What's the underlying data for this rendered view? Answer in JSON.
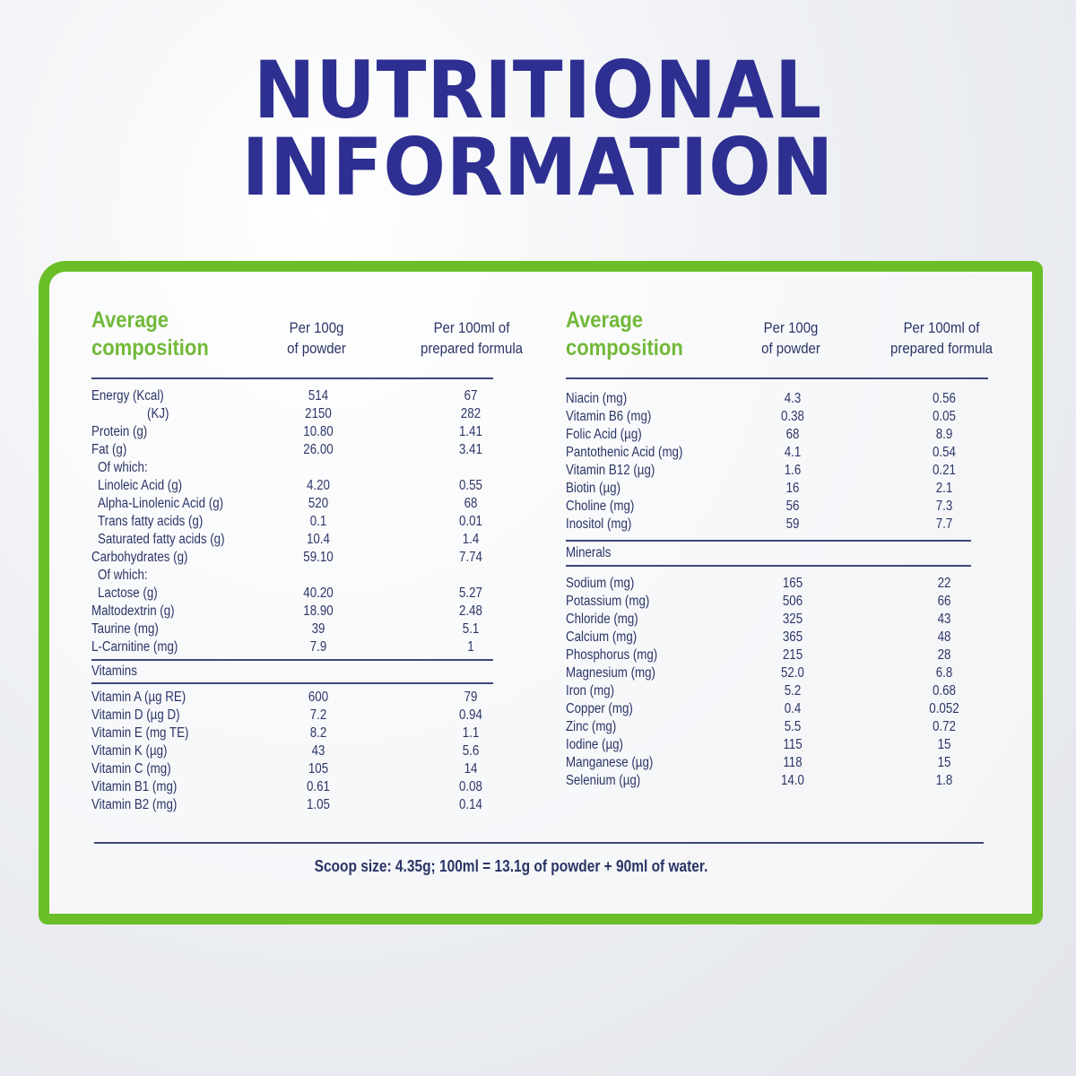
{
  "title": {
    "line1": "NUTRITIONAL",
    "line2": "INFORMATION"
  },
  "colors": {
    "title": "#2d2f91",
    "frame": "#6abf28",
    "heading": "#72b93a",
    "text": "#2a3566"
  },
  "headers": {
    "composition": [
      "Average",
      "composition"
    ],
    "per_100g": [
      "Per 100g",
      "of powder"
    ],
    "per_100ml": [
      "Per 100ml of",
      "prepared formula"
    ]
  },
  "left": {
    "nutrients": [
      {
        "name": "Energy (Kcal)",
        "per_100g": "514",
        "per_100ml": "67"
      },
      {
        "name": "(KJ)",
        "per_100g": "2150",
        "per_100ml": "282",
        "indent": 2
      },
      {
        "name": "Protein (g)",
        "per_100g": "10.80",
        "per_100ml": "1.41"
      },
      {
        "name": "Fat (g)",
        "per_100g": "26.00",
        "per_100ml": "3.41"
      },
      {
        "name": "Of which:",
        "per_100g": "",
        "per_100ml": "",
        "indent": 1
      },
      {
        "name": "Linoleic Acid (g)",
        "per_100g": "4.20",
        "per_100ml": "0.55",
        "indent": 1
      },
      {
        "name": "Alpha-Linolenic Acid (g)",
        "per_100g": "520",
        "per_100ml": "68",
        "indent": 1
      },
      {
        "name": "Trans fatty acids (g)",
        "per_100g": "0.1",
        "per_100ml": "0.01",
        "indent": 1
      },
      {
        "name": "Saturated fatty acids (g)",
        "per_100g": "10.4",
        "per_100ml": "1.4",
        "indent": 1
      },
      {
        "name": "Carbohydrates (g)",
        "per_100g": "59.10",
        "per_100ml": "7.74"
      },
      {
        "name": "Of which:",
        "per_100g": "",
        "per_100ml": "",
        "indent": 1
      },
      {
        "name": "Lactose (g)",
        "per_100g": "40.20",
        "per_100ml": "5.27",
        "indent": 1
      },
      {
        "name": "Maltodextrin (g)",
        "per_100g": "18.90",
        "per_100ml": "2.48"
      },
      {
        "name": "Taurine (mg)",
        "per_100g": "39",
        "per_100ml": "5.1"
      },
      {
        "name": "L-Carnitine (mg)",
        "per_100g": "7.9",
        "per_100ml": "1"
      }
    ],
    "vitamins_label": "Vitamins",
    "vitamins": [
      {
        "name": "Vitamin A (µg RE)",
        "per_100g": "600",
        "per_100ml": "79"
      },
      {
        "name": "Vitamin D (µg D)",
        "per_100g": "7.2",
        "per_100ml": "0.94"
      },
      {
        "name": "Vitamin E (mg TE)",
        "per_100g": "8.2",
        "per_100ml": "1.1"
      },
      {
        "name": "Vitamin K (µg)",
        "per_100g": "43",
        "per_100ml": "5.6"
      },
      {
        "name": "Vitamin C (mg)",
        "per_100g": "105",
        "per_100ml": "14"
      },
      {
        "name": "Vitamin B1 (mg)",
        "per_100g": "0.61",
        "per_100ml": "0.08"
      },
      {
        "name": "Vitamin B2 (mg)",
        "per_100g": "1.05",
        "per_100ml": "0.14"
      }
    ]
  },
  "right": {
    "vitamins": [
      {
        "name": "Niacin (mg)",
        "per_100g": "4.3",
        "per_100ml": "0.56"
      },
      {
        "name": "Vitamin B6 (mg)",
        "per_100g": "0.38",
        "per_100ml": "0.05"
      },
      {
        "name": "Folic Acid (µg)",
        "per_100g": "68",
        "per_100ml": "8.9"
      },
      {
        "name": "Pantothenic Acid (mg)",
        "per_100g": "4.1",
        "per_100ml": "0.54"
      },
      {
        "name": "Vitamin B12 (µg)",
        "per_100g": "1.6",
        "per_100ml": "0.21"
      },
      {
        "name": "Biotin (µg)",
        "per_100g": "16",
        "per_100ml": "2.1"
      },
      {
        "name": "Choline (mg)",
        "per_100g": "56",
        "per_100ml": "7.3"
      },
      {
        "name": "Inositol (mg)",
        "per_100g": "59",
        "per_100ml": "7.7"
      }
    ],
    "minerals_label": "Minerals",
    "minerals": [
      {
        "name": "Sodium (mg)",
        "per_100g": "165",
        "per_100ml": "22"
      },
      {
        "name": "Potassium (mg)",
        "per_100g": "506",
        "per_100ml": "66"
      },
      {
        "name": "Chloride (mg)",
        "per_100g": "325",
        "per_100ml": "43"
      },
      {
        "name": "Calcium (mg)",
        "per_100g": "365",
        "per_100ml": "48"
      },
      {
        "name": "Phosphorus (mg)",
        "per_100g": "215",
        "per_100ml": "28"
      },
      {
        "name": "Magnesium (mg)",
        "per_100g": "52.0",
        "per_100ml": "6.8"
      },
      {
        "name": "Iron (mg)",
        "per_100g": "5.2",
        "per_100ml": "0.68"
      },
      {
        "name": "Copper (mg)",
        "per_100g": "0.4",
        "per_100ml": "0.052"
      },
      {
        "name": "Zinc (mg)",
        "per_100g": "5.5",
        "per_100ml": "0.72"
      },
      {
        "name": "Iodine (µg)",
        "per_100g": "115",
        "per_100ml": "15"
      },
      {
        "name": "Manganese (µg)",
        "per_100g": "118",
        "per_100ml": "15"
      },
      {
        "name": "Selenium (µg)",
        "per_100g": "14.0",
        "per_100ml": "1.8"
      }
    ]
  },
  "footer": "Scoop size: 4.35g; 100ml = 13.1g of powder + 90ml of water."
}
